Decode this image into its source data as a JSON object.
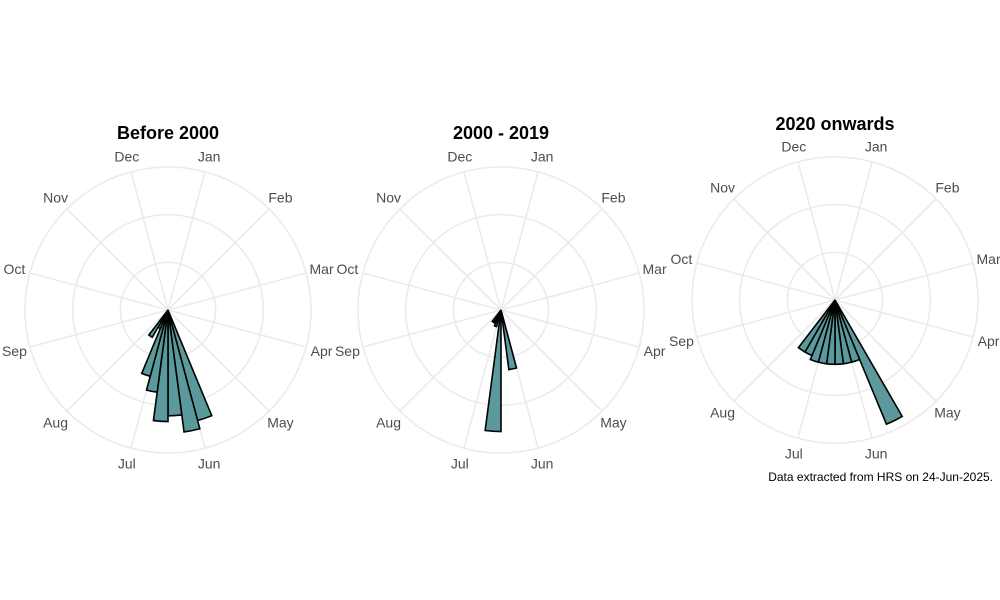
{
  "caption": "Data extracted from HRS on 24-Jun-2025.",
  "colors": {
    "bar_fill": "#5a9a9c",
    "bar_stroke": "#000000",
    "grid": "#ebebeb",
    "label": "#4d4d4d"
  },
  "chart_data": [
    {
      "type": "bar",
      "coord": "polar",
      "title": "Before 2000",
      "months": [
        "Jan",
        "Feb",
        "Mar",
        "Apr",
        "May",
        "Jun",
        "Jul",
        "Aug",
        "Sep",
        "Oct",
        "Nov",
        "Dec"
      ],
      "bins_per_month": 4,
      "rmax": 1.0,
      "grid_rings": [
        0.333,
        0.667,
        1.0
      ],
      "bars": [
        {
          "bin": 21,
          "value": 0.8
        },
        {
          "bin": 22,
          "value": 0.86
        },
        {
          "bin": 23,
          "value": 0.74
        },
        {
          "bin": 24,
          "value": 0.78
        },
        {
          "bin": 25,
          "value": 0.58
        },
        {
          "bin": 26,
          "value": 0.48
        },
        {
          "bin": 27,
          "value": 0.14
        },
        {
          "bin": 28,
          "value": 0.22
        }
      ]
    },
    {
      "type": "bar",
      "coord": "polar",
      "title": "2000 - 2019",
      "months": [
        "Jan",
        "Feb",
        "Mar",
        "Apr",
        "May",
        "Jun",
        "Jul",
        "Aug",
        "Sep",
        "Oct",
        "Nov",
        "Dec"
      ],
      "bins_per_month": 4,
      "rmax": 1.0,
      "grid_rings": [
        0.333,
        0.667,
        1.0
      ],
      "bars": [
        {
          "bin": 22,
          "value": 0.42
        },
        {
          "bin": 24,
          "value": 0.85
        },
        {
          "bin": 26,
          "value": 0.12
        },
        {
          "bin": 27,
          "value": 0.1
        },
        {
          "bin": 28,
          "value": 0.1
        }
      ]
    },
    {
      "type": "bar",
      "coord": "polar",
      "title": "2020 onwards",
      "months": [
        "Jan",
        "Feb",
        "Mar",
        "Apr",
        "May",
        "Jun",
        "Jul",
        "Aug",
        "Sep",
        "Oct",
        "Nov",
        "Dec"
      ],
      "bins_per_month": 4,
      "rmax": 1.0,
      "grid_rings": [
        0.333,
        0.667,
        1.0
      ],
      "bars": [
        {
          "bin": 20,
          "value": 0.94
        },
        {
          "bin": 21,
          "value": 0.45
        },
        {
          "bin": 22,
          "value": 0.45
        },
        {
          "bin": 23,
          "value": 0.45
        },
        {
          "bin": 24,
          "value": 0.45
        },
        {
          "bin": 25,
          "value": 0.45
        },
        {
          "bin": 26,
          "value": 0.45
        },
        {
          "bin": 27,
          "value": 0.42
        },
        {
          "bin": 28,
          "value": 0.42
        }
      ]
    }
  ]
}
